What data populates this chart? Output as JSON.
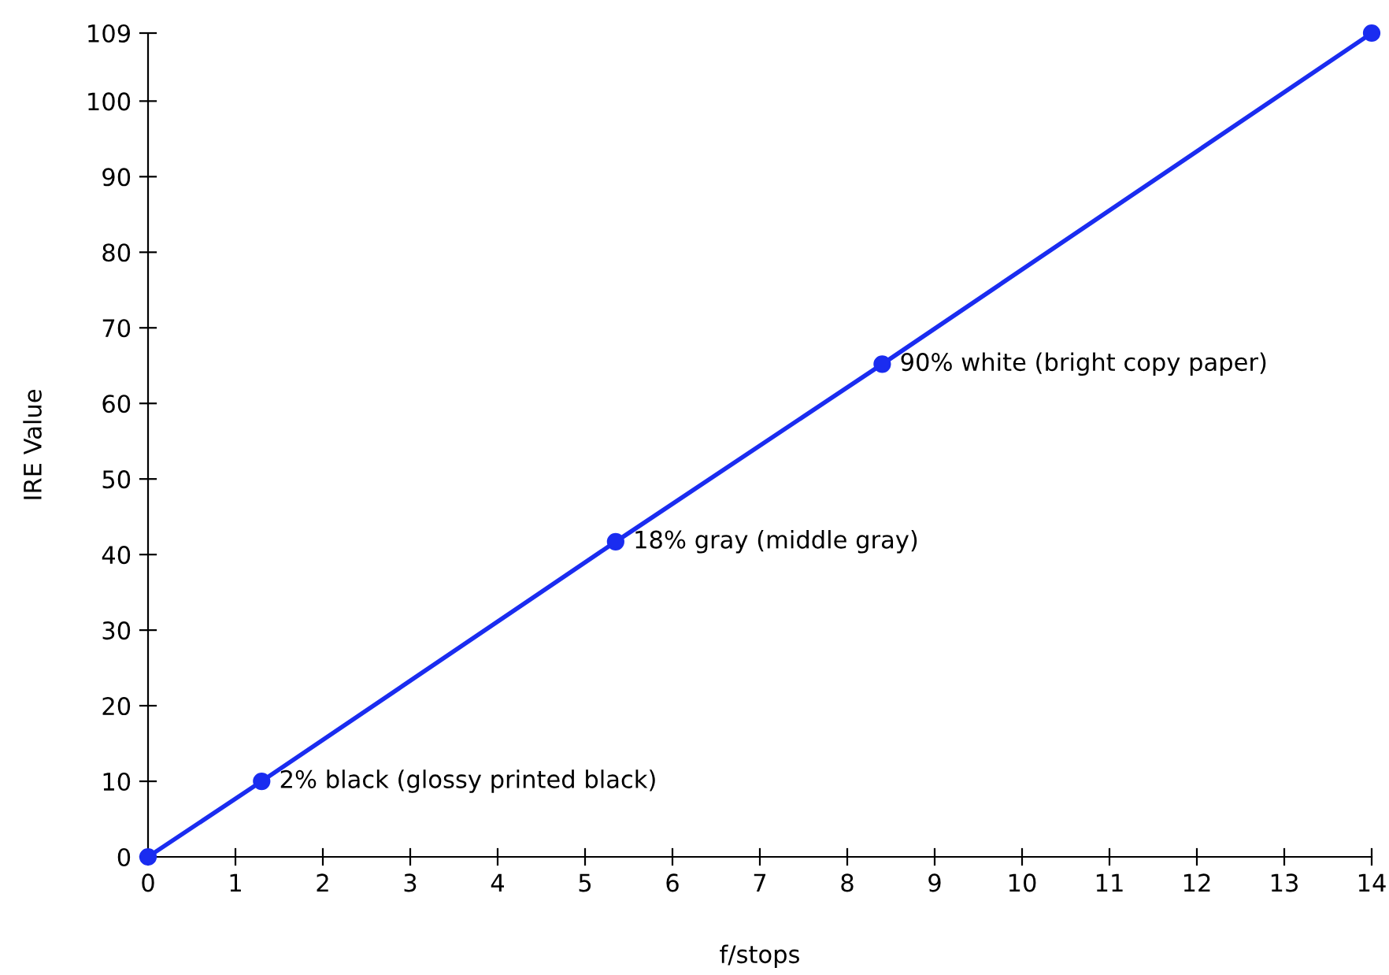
{
  "chart_data": {
    "type": "line",
    "xlabel": "f/stops",
    "ylabel": "IRE Value",
    "x": [
      0,
      1.3,
      5.35,
      8.4,
      14
    ],
    "series": [
      {
        "color": "#1a2cf0",
        "values": [
          0,
          10,
          41.7,
          65.2,
          109
        ]
      }
    ],
    "marker": "circle",
    "line_style": "solid",
    "grid": false,
    "legend": false,
    "xlim": [
      0,
      14
    ],
    "xticks": [
      0,
      1,
      2,
      3,
      4,
      5,
      6,
      7,
      8,
      9,
      10,
      11,
      12,
      13,
      14
    ],
    "ylim": [
      0,
      109
    ],
    "yticks": [
      0,
      10,
      20,
      30,
      40,
      50,
      60,
      70,
      80,
      90,
      100,
      109
    ],
    "annotations": [
      {
        "text": "2% black (glossy printed black)",
        "x": 1.3,
        "y": 10
      },
      {
        "text": "18% gray (middle gray)",
        "x": 5.35,
        "y": 41.7
      },
      {
        "text": "90% white (bright copy paper)",
        "x": 8.4,
        "y": 65.2
      }
    ]
  }
}
